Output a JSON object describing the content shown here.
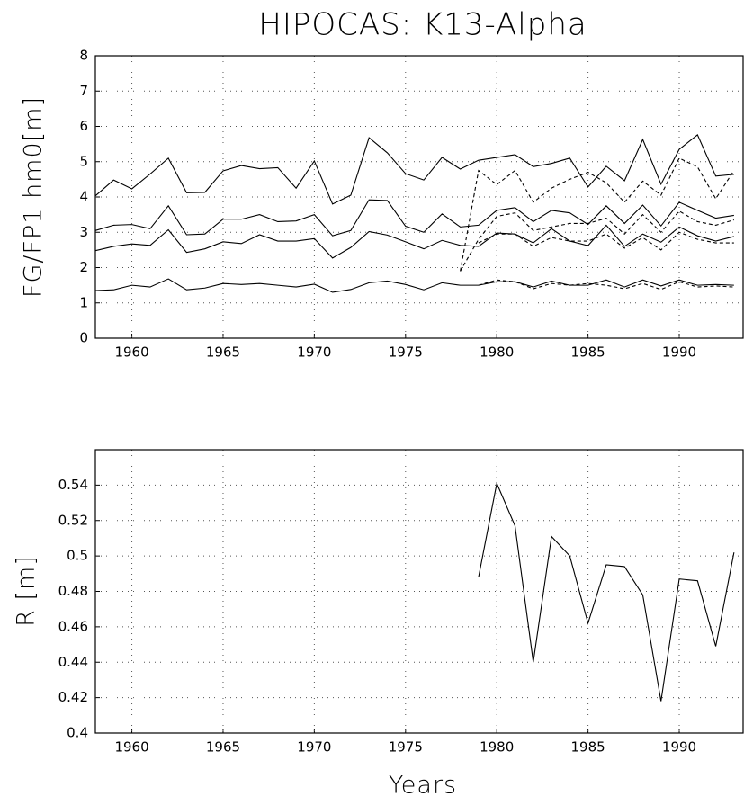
{
  "chart_data": [
    {
      "type": "line",
      "title": "HIPOCAS: K13-Alpha",
      "ylabel": "FG/FP1 hm0[m]",
      "x": [
        1958,
        1959,
        1960,
        1961,
        1962,
        1963,
        1964,
        1965,
        1966,
        1967,
        1968,
        1969,
        1970,
        1971,
        1972,
        1973,
        1974,
        1975,
        1976,
        1977,
        1978,
        1979,
        1980,
        1981,
        1982,
        1983,
        1984,
        1985,
        1986,
        1987,
        1988,
        1989,
        1990,
        1991,
        1992,
        1993
      ],
      "series": [
        {
          "color": "#000000",
          "style": "solid",
          "values": [
            4.03,
            4.48,
            4.23,
            4.65,
            5.1,
            4.12,
            4.13,
            4.74,
            4.89,
            4.8,
            4.83,
            4.25,
            5.02,
            3.8,
            4.05,
            5.68,
            5.25,
            4.66,
            4.48,
            5.12,
            4.79,
            5.04,
            5.12,
            5.2,
            4.86,
            4.95,
            5.1,
            4.28,
            4.87,
            4.46,
            5.63,
            4.36,
            5.35,
            5.76,
            4.59,
            4.64
          ]
        },
        {
          "color": "#000000",
          "style": "solid",
          "values": [
            3.05,
            3.2,
            3.22,
            3.1,
            3.75,
            2.93,
            2.95,
            3.37,
            3.37,
            3.5,
            3.3,
            3.32,
            3.5,
            2.9,
            3.05,
            3.92,
            3.9,
            3.17,
            3.0,
            3.52,
            3.15,
            3.2,
            3.62,
            3.7,
            3.3,
            3.62,
            3.55,
            3.22,
            3.75,
            3.25,
            3.77,
            3.18,
            3.85,
            3.62,
            3.4,
            3.48
          ]
        },
        {
          "color": "#000000",
          "style": "solid",
          "values": [
            2.48,
            2.6,
            2.67,
            2.63,
            3.07,
            2.43,
            2.53,
            2.73,
            2.68,
            2.93,
            2.75,
            2.75,
            2.82,
            2.27,
            2.57,
            3.02,
            2.92,
            2.73,
            2.53,
            2.77,
            2.63,
            2.6,
            2.98,
            2.95,
            2.7,
            3.1,
            2.75,
            2.62,
            3.2,
            2.6,
            2.95,
            2.72,
            3.15,
            2.9,
            2.75,
            2.88
          ]
        },
        {
          "color": "#000000",
          "style": "solid",
          "values": [
            1.35,
            1.37,
            1.5,
            1.45,
            1.68,
            1.37,
            1.42,
            1.55,
            1.52,
            1.55,
            1.5,
            1.45,
            1.53,
            1.3,
            1.38,
            1.57,
            1.62,
            1.52,
            1.37,
            1.57,
            1.5,
            1.5,
            1.6,
            1.6,
            1.45,
            1.62,
            1.5,
            1.5,
            1.65,
            1.45,
            1.65,
            1.48,
            1.65,
            1.5,
            1.52,
            1.5
          ]
        },
        {
          "color": "#000000",
          "style": "dashed",
          "values": [
            null,
            null,
            null,
            null,
            null,
            null,
            null,
            null,
            null,
            null,
            null,
            null,
            null,
            null,
            null,
            null,
            null,
            null,
            null,
            null,
            1.9,
            4.75,
            4.35,
            4.75,
            3.85,
            4.25,
            4.5,
            4.7,
            4.4,
            3.85,
            4.45,
            4.05,
            5.1,
            4.85,
            3.95,
            4.75
          ]
        },
        {
          "color": "#000000",
          "style": "dashed",
          "values": [
            null,
            null,
            null,
            null,
            null,
            null,
            null,
            null,
            null,
            null,
            null,
            null,
            null,
            null,
            null,
            null,
            null,
            null,
            null,
            null,
            1.9,
            2.8,
            3.45,
            3.55,
            3.05,
            3.15,
            3.25,
            3.25,
            3.4,
            2.95,
            3.5,
            3.0,
            3.6,
            3.3,
            3.2,
            3.35
          ]
        },
        {
          "color": "#000000",
          "style": "dashed",
          "values": [
            null,
            null,
            null,
            null,
            null,
            null,
            null,
            null,
            null,
            null,
            null,
            null,
            null,
            null,
            null,
            null,
            null,
            null,
            null,
            null,
            null,
            2.7,
            2.95,
            2.95,
            2.6,
            2.85,
            2.75,
            2.75,
            2.95,
            2.55,
            2.85,
            2.5,
            3.0,
            2.8,
            2.7,
            2.7
          ]
        },
        {
          "color": "#000000",
          "style": "dashed",
          "values": [
            null,
            null,
            null,
            null,
            null,
            null,
            null,
            null,
            null,
            null,
            null,
            null,
            null,
            null,
            null,
            null,
            null,
            null,
            null,
            null,
            null,
            1.5,
            1.65,
            1.6,
            1.4,
            1.55,
            1.5,
            1.55,
            1.5,
            1.4,
            1.55,
            1.38,
            1.6,
            1.45,
            1.48,
            1.45
          ]
        }
      ],
      "xlim": [
        1958,
        1993.5
      ],
      "ylim": [
        0,
        8
      ],
      "xticks": [
        1960,
        1965,
        1970,
        1975,
        1980,
        1985,
        1990
      ],
      "yticks": [
        0,
        1,
        2,
        3,
        4,
        5,
        6,
        7,
        8
      ],
      "grid": true
    },
    {
      "type": "line",
      "ylabel": "R [m]",
      "xlabel": "Years",
      "x": [
        1979,
        1980,
        1981,
        1982,
        1983,
        1984,
        1985,
        1986,
        1987,
        1988,
        1989,
        1990,
        1991,
        1992,
        1993
      ],
      "series": [
        {
          "color": "#000000",
          "style": "solid",
          "values": [
            0.488,
            0.541,
            0.517,
            0.44,
            0.511,
            0.5,
            0.462,
            0.495,
            0.494,
            0.478,
            0.418,
            0.487,
            0.486,
            0.449,
            0.502
          ]
        }
      ],
      "xlim": [
        1958,
        1993.5
      ],
      "ylim": [
        0.4,
        0.56
      ],
      "xticks": [
        1960,
        1965,
        1970,
        1975,
        1980,
        1985,
        1990
      ],
      "yticks": [
        0.4,
        0.42,
        0.44,
        0.46,
        0.48,
        0.5,
        0.52,
        0.54
      ],
      "grid": true
    }
  ]
}
